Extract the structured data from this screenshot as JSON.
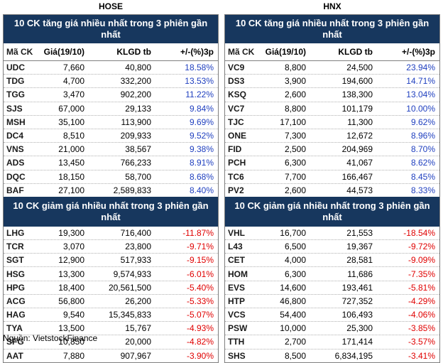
{
  "hose_title": "HOSE",
  "hnx_title": "HNX",
  "up_title": "10 CK tăng giá nhiều nhất trong 3 phiên gần nhất",
  "down_title": "10 CK giảm giá nhiều nhất trong 3 phiên gần nhất",
  "columns": [
    "Mã CK",
    "Giá(19/10)",
    "KLGD tb",
    "+/-(%)3p"
  ],
  "hose": {
    "up": [
      [
        "UDC",
        "7,660",
        "40,800",
        "18.58%"
      ],
      [
        "TDG",
        "4,700",
        "332,200",
        "13.53%"
      ],
      [
        "TGG",
        "3,470",
        "902,200",
        "11.22%"
      ],
      [
        "SJS",
        "67,000",
        "29,133",
        "9.84%"
      ],
      [
        "MSH",
        "35,100",
        "113,900",
        "9.69%"
      ],
      [
        "DC4",
        "8,510",
        "209,933",
        "9.52%"
      ],
      [
        "VNS",
        "21,000",
        "38,567",
        "9.38%"
      ],
      [
        "ADS",
        "13,450",
        "766,233",
        "8.91%"
      ],
      [
        "DQC",
        "18,150",
        "58,700",
        "8.68%"
      ],
      [
        "BAF",
        "27,100",
        "2,589,833",
        "8.40%"
      ]
    ],
    "down": [
      [
        "LHG",
        "19,300",
        "716,400",
        "-11.87%"
      ],
      [
        "TCR",
        "3,070",
        "23,800",
        "-9.71%"
      ],
      [
        "SGT",
        "12,900",
        "517,933",
        "-9.15%"
      ],
      [
        "HSG",
        "13,300",
        "9,574,933",
        "-6.01%"
      ],
      [
        "HPG",
        "18,400",
        "20,561,500",
        "-5.40%"
      ],
      [
        "ACG",
        "56,800",
        "26,200",
        "-5.33%"
      ],
      [
        "HAG",
        "9,540",
        "15,345,833",
        "-5.07%"
      ],
      [
        "TYA",
        "13,500",
        "15,767",
        "-4.93%"
      ],
      [
        "SFG",
        "10,850",
        "20,000",
        "-4.82%"
      ],
      [
        "AAT",
        "7,880",
        "907,967",
        "-3.90%"
      ]
    ]
  },
  "hnx": {
    "up": [
      [
        "VC9",
        "8,800",
        "24,500",
        "23.94%"
      ],
      [
        "DS3",
        "3,900",
        "194,600",
        "14.71%"
      ],
      [
        "KSQ",
        "2,600",
        "138,300",
        "13.04%"
      ],
      [
        "VC7",
        "8,800",
        "101,179",
        "10.00%"
      ],
      [
        "TJC",
        "17,100",
        "11,300",
        "9.62%"
      ],
      [
        "ONE",
        "7,300",
        "12,672",
        "8.96%"
      ],
      [
        "FID",
        "2,500",
        "204,969",
        "8.70%"
      ],
      [
        "PCH",
        "6,300",
        "41,067",
        "8.62%"
      ],
      [
        "TC6",
        "7,700",
        "166,467",
        "8.45%"
      ],
      [
        "PV2",
        "2,600",
        "44,573",
        "8.33%"
      ]
    ],
    "down": [
      [
        "VHL",
        "16,700",
        "21,553",
        "-18.54%"
      ],
      [
        "L43",
        "6,500",
        "19,367",
        "-9.72%"
      ],
      [
        "CET",
        "4,000",
        "28,581",
        "-9.09%"
      ],
      [
        "HOM",
        "6,300",
        "11,686",
        "-7.35%"
      ],
      [
        "EVS",
        "14,600",
        "193,461",
        "-5.81%"
      ],
      [
        "HTP",
        "46,800",
        "727,352",
        "-4.29%"
      ],
      [
        "VCS",
        "54,400",
        "106,493",
        "-4.06%"
      ],
      [
        "PSW",
        "10,000",
        "25,300",
        "-3.85%"
      ],
      [
        "TTH",
        "2,700",
        "171,414",
        "-3.57%"
      ],
      [
        "SHS",
        "8,500",
        "6,834,195",
        "-3.41%"
      ]
    ]
  },
  "source": "Nguồn: VietstockFinance",
  "colors": {
    "header_bg": "#17375e",
    "up": "#1f3fbf",
    "down": "#e00000"
  }
}
